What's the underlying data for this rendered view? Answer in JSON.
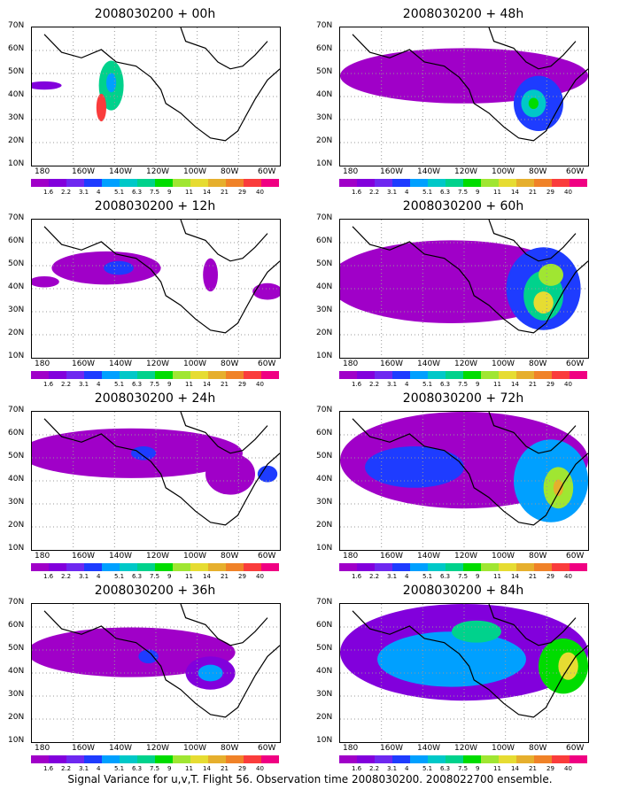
{
  "caption": "Signal Variance for u,v,T. Flight 56. Observation time 2008030200. 2008022700 ensemble.",
  "lat_labels": [
    "70N",
    "60N",
    "50N",
    "40N",
    "30N",
    "20N",
    "10N"
  ],
  "lon_labels": [
    "180",
    "160W",
    "140W",
    "120W",
    "100W",
    "80W",
    "60W"
  ],
  "colorbar": {
    "labels": [
      "1.6",
      "2.2",
      "3.1",
      "4",
      "5.1",
      "6.3",
      "7.5",
      "9",
      "11",
      "14",
      "21",
      "29",
      "40"
    ],
    "colors": [
      "#a000c8",
      "#8200dc",
      "#6e28f0",
      "#1e3cff",
      "#00a0ff",
      "#00c8c8",
      "#00d28c",
      "#00dc00",
      "#a0e632",
      "#e6dc32",
      "#e6af2d",
      "#f08228",
      "#fa3c3c",
      "#f00082"
    ]
  },
  "panels": [
    {
      "title": "2008030200 + 00h"
    },
    {
      "title": "2008030200 + 12h"
    },
    {
      "title": "2008030200 + 24h"
    },
    {
      "title": "2008030200 + 36h"
    },
    {
      "title": "2008030200 + 48h"
    },
    {
      "title": "2008030200 + 60h"
    },
    {
      "title": "2008030200 + 72h"
    },
    {
      "title": "2008030200 + 84h"
    }
  ]
}
